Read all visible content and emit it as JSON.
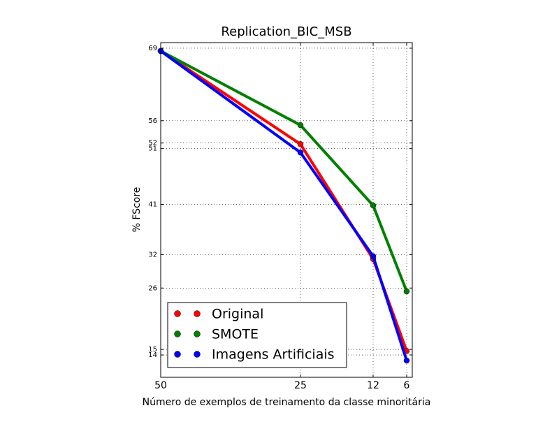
{
  "chart_data": {
    "type": "line",
    "title": "Replication_BIC_MSB",
    "xlabel": "Número de exemplos de treinamento da classe minoritária",
    "ylabel": "% FScore",
    "x": [
      50,
      25,
      12,
      6
    ],
    "series": [
      {
        "name": "Original",
        "color": "#ff0000",
        "values": [
          68.5,
          51.8,
          31.2,
          14.7
        ]
      },
      {
        "name": "SMOTE",
        "color": "#008000",
        "values": [
          68.5,
          55.2,
          40.8,
          25.4
        ]
      },
      {
        "name": "Imagens Artificiais",
        "color": "#0000ff",
        "values": [
          68.5,
          50.3,
          31.7,
          13.0
        ]
      }
    ],
    "xlim": [
      50,
      5
    ],
    "xticks": [
      50,
      25,
      12,
      6
    ],
    "ylim": [
      10,
      70
    ],
    "yticks": [
      14,
      15,
      26,
      32,
      41,
      51,
      52,
      56,
      69
    ],
    "grid": true,
    "legend": "lower left"
  }
}
